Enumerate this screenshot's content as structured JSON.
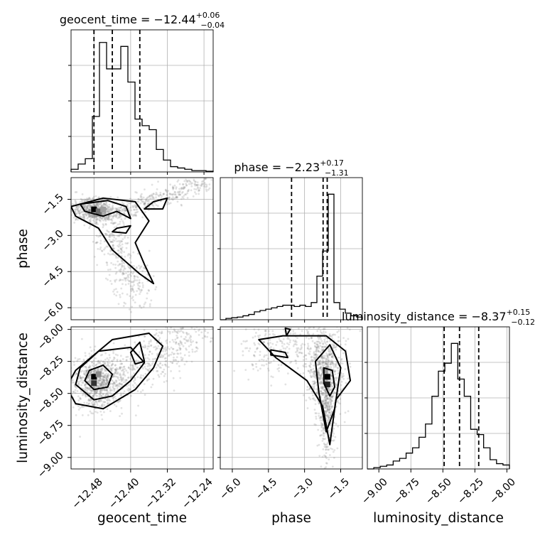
{
  "chart_data": {
    "type": "corner",
    "parameters": [
      {
        "name": "geocent_time",
        "range": [
          -12.53,
          -12.22
        ],
        "ticks": [
          -12.48,
          -12.4,
          -12.32,
          -12.24
        ],
        "tick_labels": [
          "−12.48",
          "−12.40",
          "−12.32",
          "−12.24"
        ],
        "title": {
          "main": "geocent_time = −12.44",
          "sup": "+0.06",
          "sub": "−0.04"
        },
        "quantiles": [
          -12.48,
          -12.44,
          -12.38
        ],
        "hist": {
          "counts": [
            0.02,
            0.06,
            0.1,
            0.42,
            0.98,
            0.78,
            0.78,
            0.95,
            0.68,
            0.4,
            0.35,
            0.32,
            0.17,
            0.09,
            0.04,
            0.03,
            0.02,
            0.01,
            0.01,
            0.005
          ]
        }
      },
      {
        "name": "phase",
        "range": [
          -6.5,
          -0.6
        ],
        "ticks": [
          -6.0,
          -4.5,
          -3.0,
          -1.5
        ],
        "tick_labels": [
          "−6.0",
          "−4.5",
          "−3.0",
          "−1.5"
        ],
        "title": {
          "main": "phase = −2.23",
          "sup": "+0.17",
          "sub": "−1.31"
        },
        "quantiles": [
          -3.54,
          -2.23,
          -2.06
        ],
        "hist": {
          "counts": [
            0.0,
            0.01,
            0.015,
            0.02,
            0.03,
            0.04,
            0.06,
            0.07,
            0.08,
            0.09,
            0.1,
            0.11,
            0.11,
            0.1,
            0.11,
            0.1,
            0.13,
            0.33,
            0.52,
            0.95,
            0.13,
            0.08,
            0.05,
            0.03,
            0.02
          ]
        }
      },
      {
        "name": "luminosity_distance",
        "range": [
          -9.09,
          -7.98
        ],
        "ticks": [
          -9.0,
          -8.75,
          -8.5,
          -8.25,
          -8.0
        ],
        "tick_labels": [
          "−9.00",
          "−8.75",
          "−8.50",
          "−8.25",
          "−8.00"
        ],
        "title": {
          "main": "luminosity_distance = −8.37",
          "sup": "+0.15",
          "sub": "−0.12"
        },
        "quantiles": [
          -8.49,
          -8.37,
          -8.22
        ],
        "hist": {
          "counts": [
            0.0,
            0.01,
            0.02,
            0.03,
            0.06,
            0.08,
            0.12,
            0.16,
            0.24,
            0.34,
            0.55,
            0.74,
            0.8,
            0.95,
            0.68,
            0.55,
            0.3,
            0.26,
            0.16,
            0.07,
            0.04,
            0.03
          ]
        }
      }
    ]
  }
}
